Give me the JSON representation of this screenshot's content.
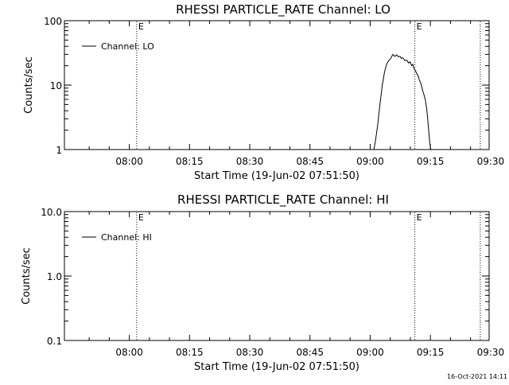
{
  "footer": {
    "timestamp": "16-Oct-2021 14:11"
  },
  "chart_data": [
    {
      "type": "line",
      "title": "RHESSI PARTICLE_RATE Channel: LO",
      "xlabel": "Start Time (19-Jun-02 07:51:50)",
      "ylabel": "Counts/sec",
      "y_scale": "log",
      "ylim": [
        1,
        100
      ],
      "xlim_minutes": [
        -8.0,
        97.8
      ],
      "x_ticks": [
        {
          "label": "08:00",
          "min": 8.17
        },
        {
          "label": "08:15",
          "min": 23.17
        },
        {
          "label": "08:30",
          "min": 38.17
        },
        {
          "label": "08:45",
          "min": 53.17
        },
        {
          "label": "09:00",
          "min": 68.17
        },
        {
          "label": "09:15",
          "min": 83.17
        },
        {
          "label": "09:30",
          "min": 98.17
        }
      ],
      "y_ticks": [
        {
          "label": "1",
          "value": 1
        },
        {
          "label": "10",
          "value": 10
        },
        {
          "label": "100",
          "value": 100
        }
      ],
      "markers": [
        {
          "label": "E",
          "min": 10.0
        },
        {
          "label": "E",
          "min": 79.3
        },
        {
          "label": "",
          "min": 95.6
        }
      ],
      "legend": "top-left",
      "series": [
        {
          "name": "Channel: LO",
          "x_min": [
            69.1,
            69.5,
            70.0,
            70.6,
            71.2,
            71.7,
            72.1,
            72.4,
            72.8,
            73.3,
            73.8,
            74.3,
            74.8,
            75.2,
            75.6,
            75.9,
            76.3,
            76.8,
            77.3,
            77.7,
            78.1,
            78.5,
            78.8,
            79.1,
            79.4,
            79.8,
            80.1,
            80.4,
            80.7,
            81.0,
            81.3,
            81.6,
            81.9,
            82.2,
            82.4,
            82.6,
            82.8,
            83.0,
            83.2,
            83.3
          ],
          "y": [
            1.0,
            1.4,
            2.3,
            5.0,
            10.0,
            15.5,
            19.5,
            22.0,
            24.0,
            26.0,
            30.0,
            28.0,
            29.5,
            27.5,
            28.0,
            26.0,
            26.5,
            24.0,
            24.5,
            22.0,
            23.0,
            20.0,
            21.0,
            18.0,
            17.0,
            15.0,
            14.0,
            12.0,
            11.0,
            9.5,
            8.0,
            7.0,
            6.0,
            4.5,
            3.5,
            2.5,
            1.8,
            1.3,
            1.05,
            1.0
          ]
        }
      ]
    },
    {
      "type": "line",
      "title": "RHESSI PARTICLE_RATE Channel: HI",
      "xlabel": "Start Time (19-Jun-02 07:51:50)",
      "ylabel": "Counts/sec",
      "y_scale": "log",
      "ylim": [
        0.1,
        10
      ],
      "xlim_minutes": [
        -8.0,
        97.8
      ],
      "x_ticks": [
        {
          "label": "08:00",
          "min": 8.17
        },
        {
          "label": "08:15",
          "min": 23.17
        },
        {
          "label": "08:30",
          "min": 38.17
        },
        {
          "label": "08:45",
          "min": 53.17
        },
        {
          "label": "09:00",
          "min": 68.17
        },
        {
          "label": "09:15",
          "min": 83.17
        },
        {
          "label": "09:30",
          "min": 98.17
        }
      ],
      "y_ticks": [
        {
          "label": "0.1",
          "value": 0.1
        },
        {
          "label": "1.0",
          "value": 1
        },
        {
          "label": "10.0",
          "value": 10
        }
      ],
      "markers": [
        {
          "label": "E",
          "min": 10.0
        },
        {
          "label": "E",
          "min": 79.3
        },
        {
          "label": "",
          "min": 95.6
        }
      ],
      "legend": "top-left",
      "series": [
        {
          "name": "Channel: HI",
          "x_min": [],
          "y": []
        }
      ]
    }
  ]
}
